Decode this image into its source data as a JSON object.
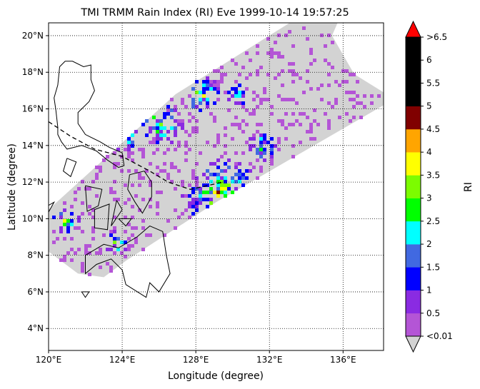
{
  "title": "TMI TRMM Rain Index (RI) Eve 1999-10-14 19:57:25",
  "xlabel": "Longitude (degree)",
  "ylabel": "Latitude (degree)",
  "colorbar": {
    "label": "RI",
    "tick_labels": [
      "<0.01",
      "0.5",
      "1",
      "1.5",
      "2",
      "2.5",
      "3",
      "3.5",
      "4",
      "4.5",
      "5",
      "5.5",
      "6",
      ">6.5"
    ],
    "colors": [
      "#b455d6",
      "#8a2be2",
      "#0000ff",
      "#4169e1",
      "#00ffff",
      "#00ff00",
      "#7cfc00",
      "#ffff00",
      "#ffa500",
      "#800000",
      "#000000",
      "#000000",
      "#000000"
    ],
    "under_color": "#d3d3d3",
    "over_color": "#ff0000"
  },
  "map": {
    "lon_range": [
      120,
      138.2
    ],
    "lat_range": [
      2.8,
      20.7
    ],
    "lon_ticks": [
      120,
      124,
      128,
      132,
      136
    ],
    "lon_tick_labels": [
      "120°E",
      "124°E",
      "128°E",
      "132°E",
      "136°E"
    ],
    "lat_ticks": [
      4,
      6,
      8,
      10,
      12,
      14,
      16,
      18,
      20
    ],
    "lat_tick_labels": [
      "4°N",
      "6°N",
      "8°N",
      "10°N",
      "12°N",
      "14°N",
      "16°N",
      "18°N",
      "20°N"
    ],
    "gridlines": true,
    "swath_color": "#d3d3d3",
    "swath_polygon": [
      [
        120,
        10.5
      ],
      [
        126.9,
        16.8
      ],
      [
        133.1,
        20.7
      ],
      [
        135.7,
        20.7
      ],
      [
        135.4,
        20.0
      ],
      [
        136.6,
        17.9
      ],
      [
        138.2,
        16.9
      ],
      [
        138.2,
        16.2
      ],
      [
        129.1,
        10.9
      ],
      [
        124.2,
        7.7
      ],
      [
        123.0,
        6.8
      ],
      [
        121.6,
        7.0
      ],
      [
        120,
        8.2
      ]
    ],
    "track": [
      [
        120,
        15.3
      ],
      [
        121.2,
        14.5
      ],
      [
        122.5,
        13.8
      ],
      [
        124.0,
        13.4
      ],
      [
        125.5,
        12.6
      ],
      [
        126.5,
        12.0
      ],
      [
        127.7,
        11.6
      ],
      [
        128.6,
        11.8
      ],
      [
        129.5,
        12.0
      ]
    ],
    "coastlines": [
      [
        [
          120.5,
          15.0
        ],
        [
          120.4,
          15.9
        ],
        [
          120.3,
          16.6
        ],
        [
          120.5,
          17.3
        ],
        [
          120.6,
          18.3
        ],
        [
          120.9,
          18.6
        ],
        [
          121.3,
          18.6
        ],
        [
          121.9,
          18.3
        ],
        [
          122.3,
          18.4
        ],
        [
          122.3,
          17.6
        ],
        [
          122.5,
          17.0
        ],
        [
          122.2,
          16.4
        ],
        [
          121.6,
          15.8
        ],
        [
          121.6,
          15.2
        ],
        [
          122.0,
          14.6
        ],
        [
          122.8,
          14.2
        ],
        [
          123.3,
          13.9
        ],
        [
          124.0,
          13.6
        ],
        [
          124.1,
          12.9
        ],
        [
          123.8,
          12.8
        ],
        [
          123.2,
          13.2
        ],
        [
          122.6,
          13.7
        ],
        [
          121.8,
          14.0
        ],
        [
          121.0,
          13.8
        ],
        [
          120.7,
          14.2
        ],
        [
          120.5,
          14.6
        ],
        [
          120.5,
          15.0
        ]
      ],
      [
        [
          121.0,
          13.3
        ],
        [
          121.5,
          13.1
        ],
        [
          121.2,
          12.3
        ],
        [
          120.8,
          12.6
        ],
        [
          121.0,
          13.3
        ]
      ],
      [
        [
          119.6,
          10.5
        ],
        [
          120.3,
          10.9
        ],
        [
          119.8,
          10.0
        ],
        [
          119.6,
          10.5
        ]
      ],
      [
        [
          124.4,
          12.4
        ],
        [
          125.2,
          12.6
        ],
        [
          125.6,
          12.0
        ],
        [
          125.6,
          11.2
        ],
        [
          125.1,
          10.3
        ],
        [
          124.7,
          10.9
        ],
        [
          124.3,
          11.6
        ],
        [
          124.4,
          12.4
        ]
      ],
      [
        [
          122.0,
          11.8
        ],
        [
          122.9,
          11.6
        ],
        [
          122.7,
          10.7
        ],
        [
          122.1,
          10.4
        ],
        [
          122.0,
          11.8
        ]
      ],
      [
        [
          122.5,
          10.5
        ],
        [
          123.3,
          10.8
        ],
        [
          123.2,
          9.4
        ],
        [
          122.5,
          9.5
        ],
        [
          122.5,
          10.5
        ]
      ],
      [
        [
          123.7,
          11.0
        ],
        [
          124.0,
          10.5
        ],
        [
          123.4,
          9.6
        ],
        [
          123.7,
          11.0
        ]
      ],
      [
        [
          123.8,
          10.0
        ],
        [
          124.5,
          10.0
        ],
        [
          124.2,
          9.6
        ],
        [
          123.8,
          10.0
        ]
      ],
      [
        [
          122.0,
          8.0
        ],
        [
          123.0,
          8.6
        ],
        [
          123.8,
          8.4
        ],
        [
          124.8,
          9.0
        ],
        [
          125.5,
          9.6
        ],
        [
          126.2,
          9.3
        ],
        [
          126.4,
          8.0
        ],
        [
          126.6,
          7.0
        ],
        [
          126.0,
          6.0
        ],
        [
          125.5,
          6.5
        ],
        [
          125.3,
          5.7
        ],
        [
          124.2,
          6.4
        ],
        [
          124.0,
          7.2
        ],
        [
          123.4,
          7.8
        ],
        [
          122.6,
          7.5
        ],
        [
          122.0,
          7.0
        ],
        [
          122.0,
          8.0
        ]
      ],
      [
        [
          121.8,
          6.0
        ],
        [
          122.2,
          6.0
        ],
        [
          122.0,
          5.7
        ],
        [
          121.8,
          6.0
        ]
      ]
    ]
  }
}
